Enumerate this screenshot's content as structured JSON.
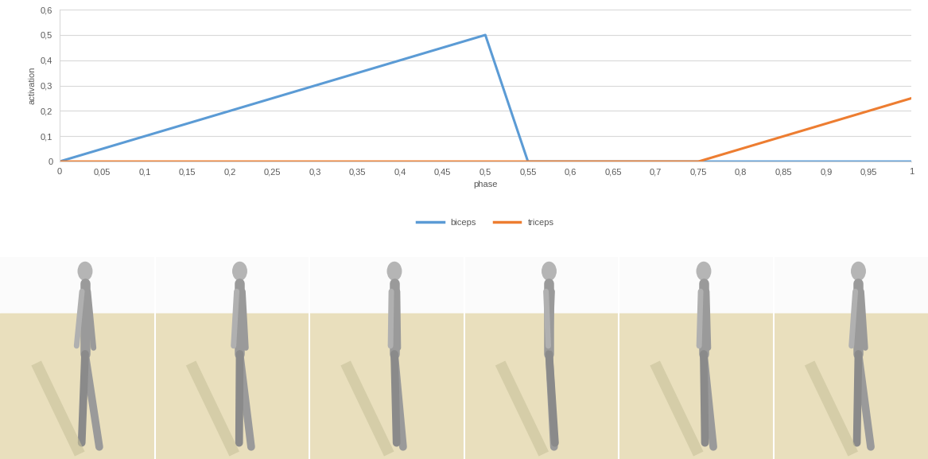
{
  "chart_data": {
    "type": "line",
    "x": [
      0,
      0.5,
      0.55,
      0.75,
      1
    ],
    "series": [
      {
        "name": "biceps",
        "color": "#5b9bd5",
        "values": [
          0,
          0.5,
          0,
          0,
          0
        ]
      },
      {
        "name": "triceps",
        "color": "#ed7d31",
        "values": [
          0,
          0,
          0,
          0,
          0.25
        ]
      }
    ],
    "x_label": "phase",
    "y_label": "activation",
    "xlim": [
      0,
      1
    ],
    "xticks": [
      0,
      {
        "value": 0.05,
        "label": "0,05"
      },
      {
        "value": 0.1,
        "label": "0,1"
      },
      {
        "value": 0.15,
        "label": "0,15"
      },
      {
        "value": 0.2,
        "label": "0,2"
      },
      {
        "value": 0.25,
        "label": "0,25"
      },
      {
        "value": 0.3,
        "label": "0,3"
      },
      {
        "value": 0.35,
        "label": "0,35"
      },
      {
        "value": 0.4,
        "label": "0,4"
      },
      {
        "value": 0.45,
        "label": "0,45"
      },
      {
        "value": 0.5,
        "label": "0,5"
      },
      {
        "value": 0.55,
        "label": "0,55"
      },
      {
        "value": 0.6,
        "label": "0,6"
      },
      {
        "value": 0.65,
        "label": "0,65"
      },
      {
        "value": 0.7,
        "label": "0,7"
      },
      {
        "value": 0.75,
        "label": "0,75"
      },
      {
        "value": 0.8,
        "label": "0,8"
      },
      {
        "value": 0.85,
        "label": "0,85"
      },
      {
        "value": 0.9,
        "label": "0,9"
      },
      {
        "value": 0.95,
        "label": "0,95"
      },
      1
    ],
    "ylim": [
      0,
      0.6
    ],
    "yticks": [
      0,
      {
        "value": 0.1,
        "label": "0,1"
      },
      {
        "value": 0.2,
        "label": "0,2"
      },
      {
        "value": 0.3,
        "label": "0,3"
      },
      {
        "value": 0.4,
        "label": "0,4"
      },
      {
        "value": 0.5,
        "label": "0,5"
      },
      {
        "value": 0.6,
        "label": "0,6"
      }
    ],
    "grid": true,
    "legend": "lower center"
  }
}
